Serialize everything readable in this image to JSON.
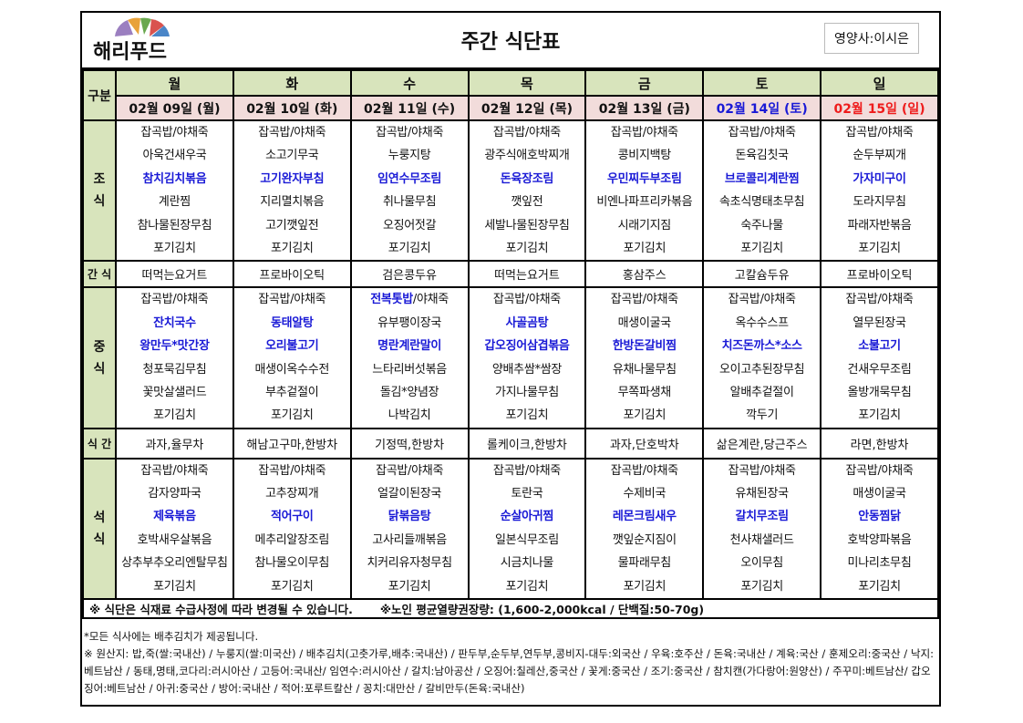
{
  "header": {
    "logo_text": "해리푸드",
    "title": "주간 식단표",
    "dietitian": "영양사:이시은"
  },
  "colors": {
    "label_bg": "#d8e4bc",
    "date_bg": "#f2dcdb",
    "highlight": "#1a1ad6",
    "saturday": "#1a1ad6",
    "sunday": "#ee1c1c"
  },
  "labels": {
    "category": "구분",
    "breakfast": "조\n식",
    "snack_am": "간 식",
    "lunch": "중\n식",
    "snack_pm": "식 간",
    "dinner": "석\n식"
  },
  "days": [
    {
      "name": "월",
      "date": "02월 09일 (월)"
    },
    {
      "name": "화",
      "date": "02월 10일 (화)"
    },
    {
      "name": "수",
      "date": "02월 11일 (수)"
    },
    {
      "name": "목",
      "date": "02월 12일 (목)"
    },
    {
      "name": "금",
      "date": "02월 13일 (금)"
    },
    {
      "name": "토",
      "date": "02월 14일 (토)"
    },
    {
      "name": "일",
      "date": "02월 15일 (일)"
    }
  ],
  "breakfast": [
    [
      {
        "t": "잡곡밥/야채죽"
      },
      {
        "t": "아욱건새우국"
      },
      {
        "t": "참치김치볶음",
        "b": true
      },
      {
        "t": "계란찜"
      },
      {
        "t": "참나물된장무침"
      },
      {
        "t": "포기김치"
      }
    ],
    [
      {
        "t": "잡곡밥/야채죽"
      },
      {
        "t": "소고기무국"
      },
      {
        "t": "고기완자부침",
        "b": true
      },
      {
        "t": "지리멸치볶음"
      },
      {
        "t": "고기깻잎전"
      },
      {
        "t": "포기김치"
      }
    ],
    [
      {
        "t": "잡곡밥/야채죽"
      },
      {
        "t": "누룽지탕"
      },
      {
        "t": "임연수무조림",
        "b": true
      },
      {
        "t": "취나물무침"
      },
      {
        "t": "오징어젓갈"
      },
      {
        "t": "포기김치"
      }
    ],
    [
      {
        "t": "잡곡밥/야채죽"
      },
      {
        "t": "광주식애호박찌개"
      },
      {
        "t": "돈육장조림",
        "b": true
      },
      {
        "t": "깻잎전"
      },
      {
        "t": "세발나물된장무침"
      },
      {
        "t": "포기김치"
      }
    ],
    [
      {
        "t": "잡곡밥/야채죽"
      },
      {
        "t": "콩비지백탕"
      },
      {
        "t": "우민찌두부조림",
        "b": true
      },
      {
        "t": "비엔나파프리카볶음"
      },
      {
        "t": "시래기지짐"
      },
      {
        "t": "포기김치"
      }
    ],
    [
      {
        "t": "잡곡밥/야채죽"
      },
      {
        "t": "돈육김칫국"
      },
      {
        "t": "브로콜리계란찜",
        "b": true
      },
      {
        "t": "속초식명태초무침"
      },
      {
        "t": "숙주나물"
      },
      {
        "t": "포기김치"
      }
    ],
    [
      {
        "t": "잡곡밥/야채죽"
      },
      {
        "t": "순두부찌개"
      },
      {
        "t": "가자미구이",
        "b": true
      },
      {
        "t": "도라지무침"
      },
      {
        "t": "파래자반볶음"
      },
      {
        "t": "포기김치"
      }
    ]
  ],
  "snack_am": [
    "떠먹는요거트",
    "프로바이오틱",
    "검은콩두유",
    "떠먹는요거트",
    "홍삼주스",
    "고칼슘두유",
    "프로바이오틱"
  ],
  "lunch": [
    [
      {
        "t": "잡곡밥/야채죽"
      },
      {
        "t": "잔치국수",
        "b": true
      },
      {
        "t": "왕만두*맛간장",
        "b": true
      },
      {
        "t": "청포묵김무침"
      },
      {
        "t": "꽃맛살샐러드"
      },
      {
        "t": "포기김치"
      }
    ],
    [
      {
        "t": "잡곡밥/야채죽"
      },
      {
        "t": "동태알탕",
        "b": true
      },
      {
        "t": "오리불고기",
        "b": true
      },
      {
        "t": "매생이옥수수전"
      },
      {
        "t": "부추겉절이"
      },
      {
        "t": "포기김치"
      }
    ],
    [
      {
        "t": "전복톳밥",
        "b": true,
        "rest": "/야채죽"
      },
      {
        "t": "유부팽이장국"
      },
      {
        "t": "명란계란말이",
        "b": true
      },
      {
        "t": "느타리버섯볶음"
      },
      {
        "t": "돌김*양념장"
      },
      {
        "t": "나박김치"
      }
    ],
    [
      {
        "t": "잡곡밥/야채죽"
      },
      {
        "t": "사골곰탕",
        "b": true
      },
      {
        "t": "갑오징어삼겹볶음",
        "b": true
      },
      {
        "t": "양배추쌈*쌈장"
      },
      {
        "t": "가지나물무침"
      },
      {
        "t": "포기김치"
      }
    ],
    [
      {
        "t": "잡곡밥/야채죽"
      },
      {
        "t": "매생이굴국"
      },
      {
        "t": "한방돈갈비찜",
        "b": true
      },
      {
        "t": "유채나물무침"
      },
      {
        "t": "무쪽파생채"
      },
      {
        "t": "포기김치"
      }
    ],
    [
      {
        "t": "잡곡밥/야채죽"
      },
      {
        "t": "옥수수스프"
      },
      {
        "t": "치즈돈까스*소스",
        "b": true
      },
      {
        "t": "오이고추된장무침"
      },
      {
        "t": "알배추겉절이"
      },
      {
        "t": "깍두기"
      }
    ],
    [
      {
        "t": "잡곡밥/야채죽"
      },
      {
        "t": "열무된장국"
      },
      {
        "t": "소불고기",
        "b": true
      },
      {
        "t": "건새우무조림"
      },
      {
        "t": "올방개묵무침"
      },
      {
        "t": "포기김치"
      }
    ]
  ],
  "snack_pm": [
    "과자,율무차",
    "해남고구마,한방차",
    "기정떡,한방차",
    "롤케이크,한방차",
    "과자,단호박차",
    "삶은계란,당근주스",
    "라면,한방차"
  ],
  "dinner": [
    [
      {
        "t": "잡곡밥/야채죽"
      },
      {
        "t": "감자양파국"
      },
      {
        "t": "제육볶음",
        "b": true
      },
      {
        "t": "호박새우살볶음"
      },
      {
        "t": "상추부추오리엔탈무침"
      },
      {
        "t": "포기김치"
      }
    ],
    [
      {
        "t": "잡곡밥/야채죽"
      },
      {
        "t": "고추장찌개"
      },
      {
        "t": "적어구이",
        "b": true
      },
      {
        "t": "메추리알장조림"
      },
      {
        "t": "참나물오이무침"
      },
      {
        "t": "포기김치"
      }
    ],
    [
      {
        "t": "잡곡밥/야채죽"
      },
      {
        "t": "얼갈이된장국"
      },
      {
        "t": "닭볶음탕",
        "b": true
      },
      {
        "t": "고사리들깨볶음"
      },
      {
        "t": "치커리유자청무침"
      },
      {
        "t": "포기김치"
      }
    ],
    [
      {
        "t": "잡곡밥/야채죽"
      },
      {
        "t": "토란국"
      },
      {
        "t": "순살아귀찜",
        "b": true
      },
      {
        "t": "일본식무조림"
      },
      {
        "t": "시금치나물"
      },
      {
        "t": "포기김치"
      }
    ],
    [
      {
        "t": "잡곡밥/야채죽"
      },
      {
        "t": "수제비국"
      },
      {
        "t": "레몬크림새우",
        "b": true
      },
      {
        "t": "깻잎순지짐이"
      },
      {
        "t": "물파래무침"
      },
      {
        "t": "포기김치"
      }
    ],
    [
      {
        "t": "잡곡밥/야채죽"
      },
      {
        "t": "유채된장국"
      },
      {
        "t": "갈치무조림",
        "b": true
      },
      {
        "t": "천사채샐러드"
      },
      {
        "t": "오이무침"
      },
      {
        "t": "포기김치"
      }
    ],
    [
      {
        "t": "잡곡밥/야채죽"
      },
      {
        "t": "매생이굴국"
      },
      {
        "t": "안동찜닭",
        "b": true
      },
      {
        "t": "호박양파볶음"
      },
      {
        "t": "미나리초무침"
      },
      {
        "t": "포기김치"
      }
    ]
  ],
  "notes": {
    "change": "※ 식단은 식재료 수급사정에 따라 변경될 수 있습니다.",
    "calorie": "※노인 평균열량권장량: (1,600-2,000kcal / 단백질:50-70g)"
  },
  "footer": {
    "kimchi": "*모든 식사에는 배추김치가 제공됩니다.",
    "origin": "※ 원산지: 밥,죽(쌀:국내산) / 누룽지(쌀:미국산) / 배추김치(고춧가루,배추:국내산) / 판두부,순두부,연두부,콩비지-대두:외국산 / 우육:호주산 / 돈육:국내산 / 계육:국산 / 훈제오리:중국산 / 낙지:베트남산 / 동태,명태,코다리:러시아산 / 고등어:국내산/ 임연수:러시아산 / 갈치:남아공산 / 오징어:칠레산,중국산 / 꽃게:중국산 / 조기:중국산 / 참치캔(가다랑어:원양산) / 주꾸미:베트남산/ 갑오징어:베트남산 / 아귀:중국산 / 방어:국내산 / 적어:포루트칼산 / 꽁치:대만산 / 갈비만두(돈육:국내산)"
  }
}
